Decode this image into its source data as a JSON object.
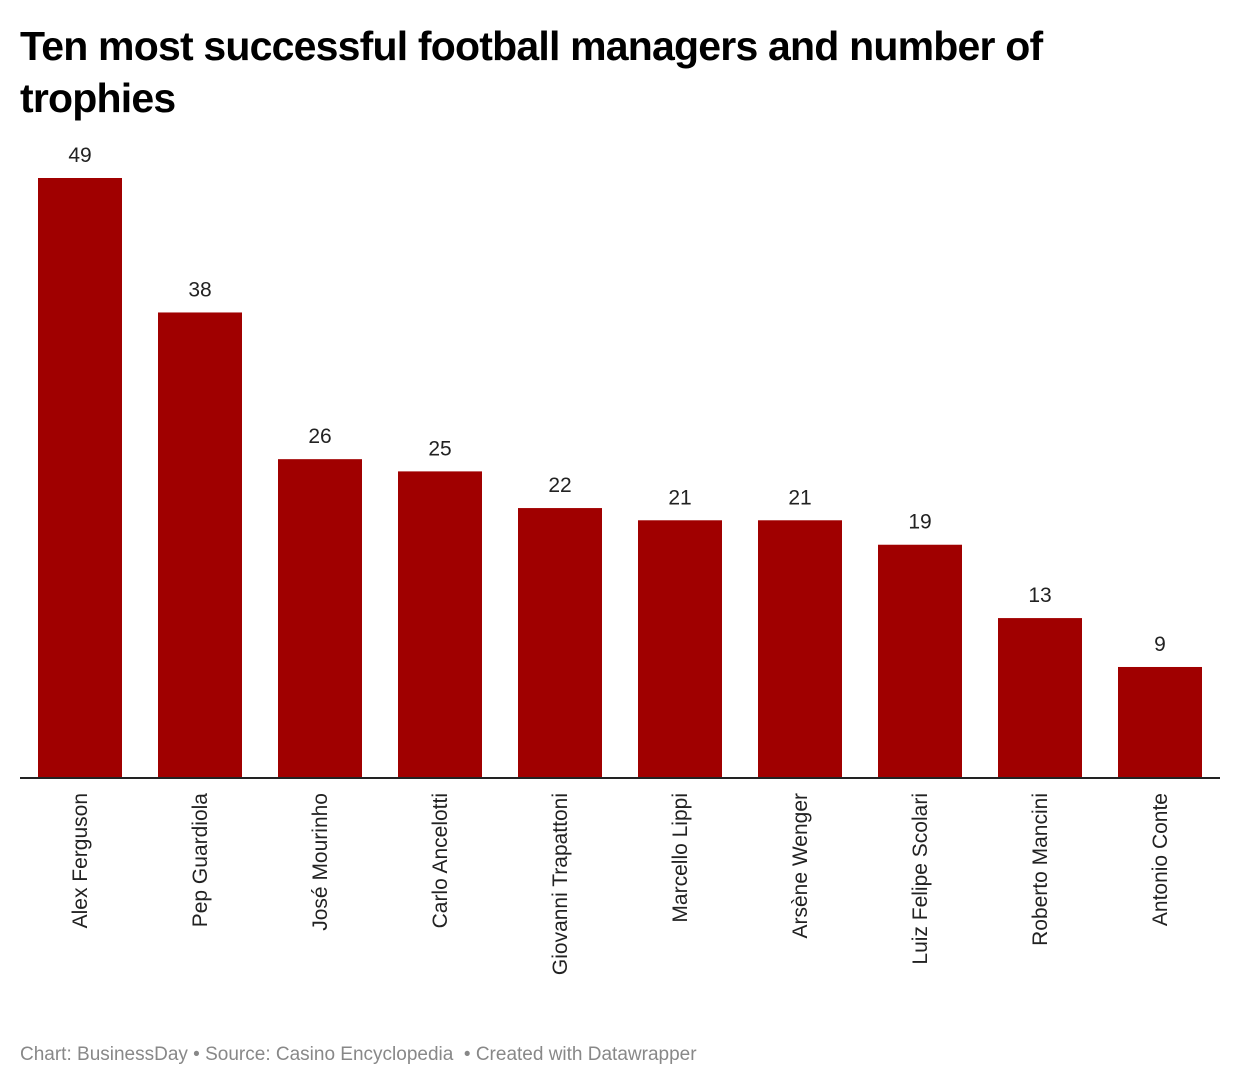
{
  "title": "Ten most successful football managers and number of trophies",
  "footer": {
    "chart_credit": "Chart: BusinessDay",
    "source": "Source: Casino Encyclopedia",
    "created_with": "Created with Datawrapper",
    "separator": " • "
  },
  "colors": {
    "bar": "#a00000",
    "axis": "#222222",
    "text": "#222222",
    "footer": "#888888"
  },
  "chart_data": {
    "type": "bar",
    "title": "Ten most successful football managers and number of trophies",
    "xlabel": "",
    "ylabel": "",
    "grid": false,
    "legend": "none",
    "ylim": [
      0,
      49
    ],
    "categories": [
      "Alex Ferguson",
      "Pep Guardiola",
      "José Mourinho",
      "Carlo Ancelotti",
      "Giovanni Trapattoni",
      "Marcello Lippi",
      "Arsène Wenger",
      "Luiz Felipe Scolari",
      "Roberto Mancini",
      "Antonio Conte"
    ],
    "values": [
      49,
      38,
      26,
      25,
      22,
      21,
      21,
      19,
      13,
      9
    ]
  }
}
